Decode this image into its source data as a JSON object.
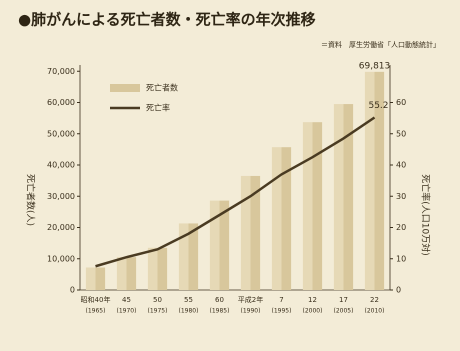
{
  "chart_data": {
    "type": "bar_line",
    "title": "●肺がんによる死亡者数・死亡率の年次推移",
    "subtitle": "＝資料　厚生労働省「人口動態統計」",
    "y_label": "死亡者数(人)",
    "y2_label": "死亡率(人口10万対)",
    "categories": [
      "昭和40年",
      "45",
      "50",
      "55",
      "60",
      "平成2年",
      "7",
      "12",
      "17",
      "22"
    ],
    "years": [
      "(1965)",
      "(1970)",
      "(1975)",
      "(1980)",
      "(1985)",
      "(1990)",
      "(1995)",
      "(2000)",
      "(2005)",
      "(2010)"
    ],
    "series": [
      {
        "name": "死亡者数",
        "type": "bar",
        "color": "#d8c79c",
        "values": [
          7200,
          10500,
          13500,
          21300,
          28600,
          36500,
          45700,
          53700,
          59500,
          69813
        ],
        "value_labels": [
          null,
          null,
          null,
          null,
          null,
          null,
          null,
          null,
          null,
          "69,813"
        ]
      },
      {
        "name": "死亡率",
        "type": "line",
        "axis": "y2",
        "color": "#4a3b22",
        "values": [
          7.6,
          10.5,
          13.0,
          18.0,
          24.0,
          30.0,
          37.0,
          42.5,
          48.5,
          55.2
        ],
        "value_labels": [
          null,
          null,
          null,
          null,
          null,
          null,
          null,
          null,
          null,
          "55.2"
        ]
      }
    ],
    "ylim": [
      0,
      72000
    ],
    "yticks": [
      0,
      {
        "value": 10000,
        "label": "10,000"
      },
      {
        "value": 20000,
        "label": "20,000"
      },
      {
        "value": 30000,
        "label": "30,000"
      },
      {
        "value": 40000,
        "label": "40,000"
      },
      {
        "value": 50000,
        "label": "50,000"
      },
      {
        "value": 60000,
        "label": "60,000"
      },
      {
        "value": 70000,
        "label": "70,000"
      }
    ],
    "y2lim": [
      0,
      72
    ],
    "y2ticks": [
      0,
      10,
      20,
      30,
      40,
      50,
      60
    ]
  }
}
